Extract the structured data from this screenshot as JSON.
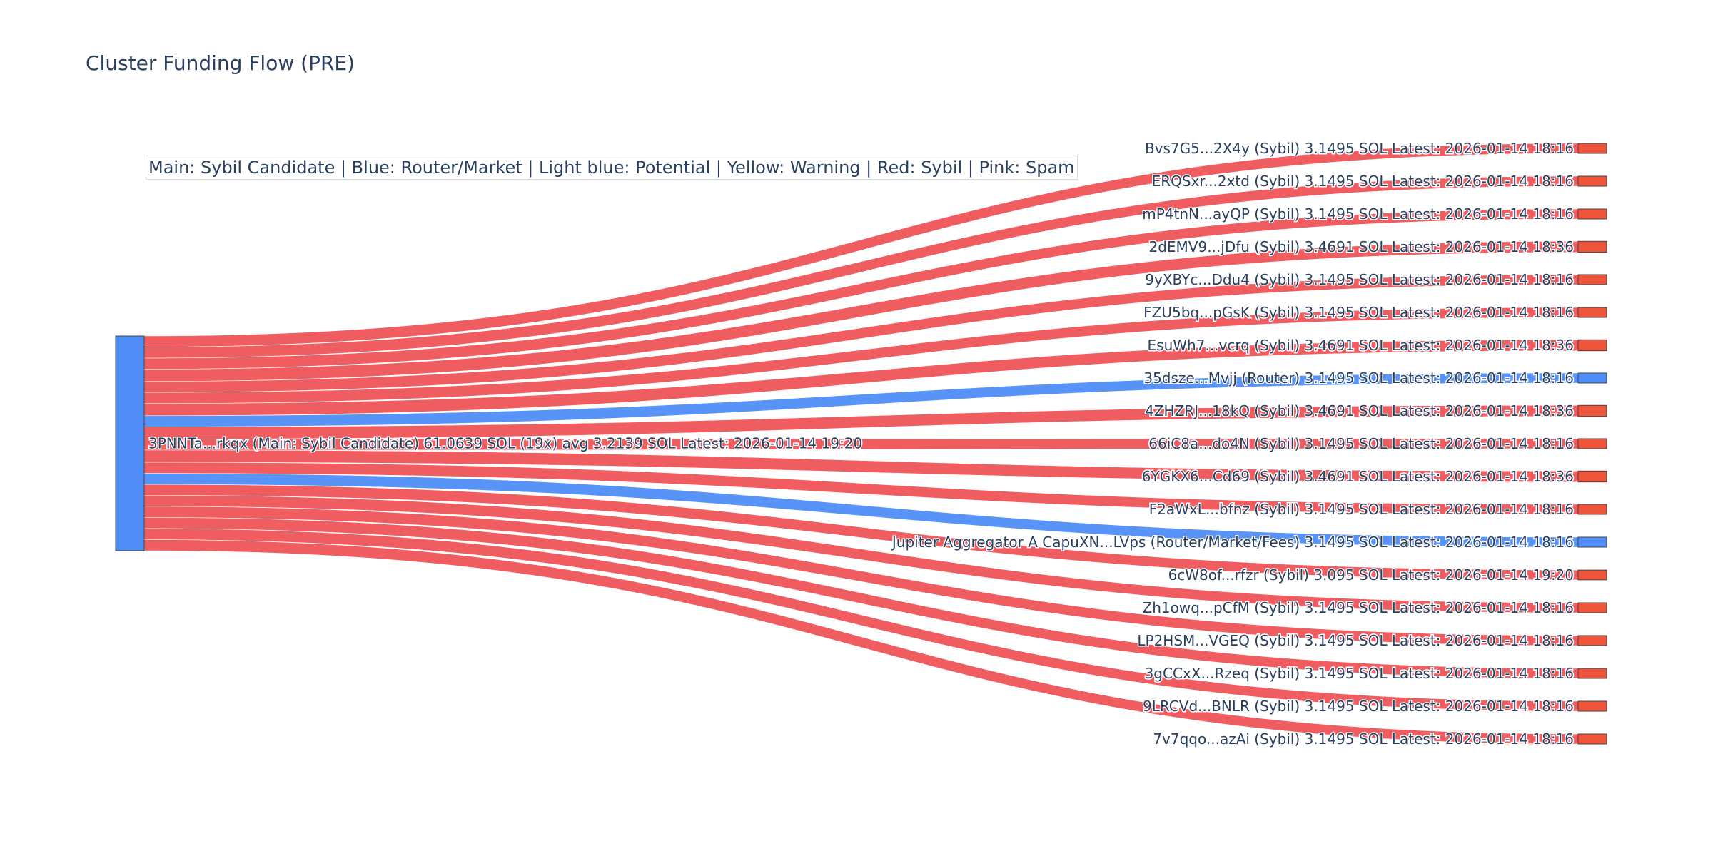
{
  "chart_data": {
    "type": "sankey",
    "title": "Cluster Funding Flow (PRE)",
    "annotation": "Main: Sybil Candidate  |  Blue: Router/Market | Light blue: Potential | Yellow: Warning | Red: Sybil | Pink: Spam",
    "colors": {
      "sybil": "#ef553b",
      "sybil_link": "#ef5458",
      "router": "#4f8ef7",
      "main": "#4f8ef7",
      "text": "#2a3f5f"
    },
    "source": {
      "label": "3PNNTa...rkqx (Main: Sybil Candidate) 61.0639 SOL (19x) avg 3.2139 SOL Latest: 2026-01-14 19:20",
      "category": "main"
    },
    "targets": [
      {
        "label": "Bvs7G5...2X4y (Sybil) 3.1495 SOL Latest: 2026-01-14 18:16",
        "category": "sybil",
        "value": 3.1495
      },
      {
        "label": "ERQSxr...2xtd (Sybil) 3.1495 SOL Latest: 2026-01-14 18:16",
        "category": "sybil",
        "value": 3.1495
      },
      {
        "label": "mP4tnN...ayQP (Sybil) 3.1495 SOL Latest: 2026-01-14 18:16",
        "category": "sybil",
        "value": 3.1495
      },
      {
        "label": "2dEMV9...jDfu (Sybil) 3.4691 SOL Latest: 2026-01-14 18:36",
        "category": "sybil",
        "value": 3.4691
      },
      {
        "label": "9yXBYc...Ddu4 (Sybil) 3.1495 SOL Latest: 2026-01-14 18:16",
        "category": "sybil",
        "value": 3.1495
      },
      {
        "label": "FZU5bq...pGsK (Sybil) 3.1495 SOL Latest: 2026-01-14 18:16",
        "category": "sybil",
        "value": 3.1495
      },
      {
        "label": "EsuWh7...vcrq (Sybil) 3.4691 SOL Latest: 2026-01-14 18:36",
        "category": "sybil",
        "value": 3.4691
      },
      {
        "label": "35dsze...Mvjj (Router) 3.1495 SOL Latest: 2026-01-14 18:16",
        "category": "router",
        "value": 3.1495
      },
      {
        "label": "4ZHZRJ...18kQ (Sybil) 3.4691 SOL Latest: 2026-01-14 18:36",
        "category": "sybil",
        "value": 3.4691
      },
      {
        "label": "66iC8a...do4N (Sybil) 3.1495 SOL Latest: 2026-01-14 18:16",
        "category": "sybil",
        "value": 3.1495
      },
      {
        "label": "6YGKX6...Cd69 (Sybil) 3.4691 SOL Latest: 2026-01-14 18:36",
        "category": "sybil",
        "value": 3.4691
      },
      {
        "label": "F2aWxL...bfnz (Sybil) 3.1495 SOL Latest: 2026-01-14 18:16",
        "category": "sybil",
        "value": 3.1495
      },
      {
        "label": "Jupiter Aggregator A CapuXN...LVps (Router/Market/Fees) 3.1495 SOL Latest: 2026-01-14 18:16",
        "category": "router",
        "value": 3.1495
      },
      {
        "label": "6cW8of...rfzr (Sybil) 3.095 SOL Latest: 2026-01-14 19:20",
        "category": "sybil",
        "value": 3.095
      },
      {
        "label": "Zh1owq...pCfM (Sybil) 3.1495 SOL Latest: 2026-01-14 18:16",
        "category": "sybil",
        "value": 3.1495
      },
      {
        "label": "LP2HSM...VGEQ (Sybil) 3.1495 SOL Latest: 2026-01-14 18:16",
        "category": "sybil",
        "value": 3.1495
      },
      {
        "label": "3gCCxX...Rzeq (Sybil) 3.1495 SOL Latest: 2026-01-14 18:16",
        "category": "sybil",
        "value": 3.1495
      },
      {
        "label": "9LRCVd...BNLR (Sybil) 3.1495 SOL Latest: 2026-01-14 18:16",
        "category": "sybil",
        "value": 3.1495
      },
      {
        "label": "7v7qqo...azAi (Sybil) 3.1495 SOL Latest: 2026-01-14 18:16",
        "category": "sybil",
        "value": 3.1495
      }
    ]
  }
}
